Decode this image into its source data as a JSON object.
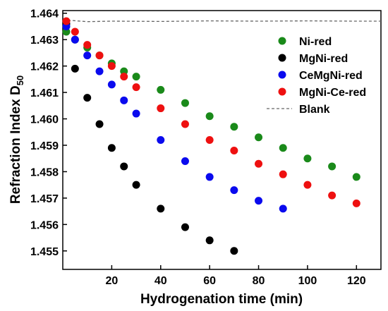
{
  "chart_data": {
    "type": "scatter",
    "xlabel": "Hydrogenation time (min)",
    "ylabel": "Refraction Index D",
    "ylabel_subscript": "50",
    "xlim": [
      0,
      130
    ],
    "ylim": [
      1.4543,
      1.4641
    ],
    "xticks": [
      20,
      40,
      60,
      80,
      100,
      120
    ],
    "xtick_labels": [
      "20",
      "40",
      "60",
      "80",
      "100",
      "120"
    ],
    "yticks": [
      1.455,
      1.456,
      1.457,
      1.458,
      1.459,
      1.46,
      1.461,
      1.462,
      1.463,
      1.464
    ],
    "ytick_labels": [
      "1.455",
      "1.456",
      "1.457",
      "1.458",
      "1.459",
      "1.460",
      "1.461",
      "1.462",
      "1.463",
      "1.464"
    ],
    "legend_position": "top-right",
    "series": [
      {
        "name": "Ni-red",
        "kind": "scatter",
        "color": "#1a8a1a",
        "x": [
          0,
          5,
          10,
          15,
          20,
          25,
          30,
          40,
          50,
          60,
          70,
          80,
          90,
          100,
          110,
          120
        ],
        "y": [
          1.4633,
          1.463,
          1.4627,
          1.4624,
          1.4621,
          1.4618,
          1.4616,
          1.4611,
          1.4606,
          1.4601,
          1.4597,
          1.4593,
          1.4589,
          1.4585,
          1.4582,
          1.4578
        ]
      },
      {
        "name": "MgNi-red",
        "kind": "scatter",
        "color": "#000000",
        "x": [
          0,
          5,
          10,
          15,
          20,
          25,
          30,
          40,
          50,
          60,
          70
        ],
        "y": [
          1.4636,
          1.4619,
          1.4608,
          1.4598,
          1.4589,
          1.4582,
          1.4575,
          1.4566,
          1.4559,
          1.4554,
          1.455
        ]
      },
      {
        "name": "CeMgNi-red",
        "kind": "scatter",
        "color": "#0a0aee",
        "x": [
          0,
          5,
          10,
          15,
          20,
          25,
          30,
          40,
          50,
          60,
          70,
          80,
          90
        ],
        "y": [
          1.4635,
          1.463,
          1.4624,
          1.4618,
          1.4613,
          1.4607,
          1.4602,
          1.4592,
          1.4584,
          1.4578,
          1.4573,
          1.4569,
          1.4566
        ]
      },
      {
        "name": "MgNi-Ce-red",
        "kind": "scatter",
        "color": "#ee1010",
        "x": [
          0,
          5,
          10,
          15,
          20,
          25,
          30,
          40,
          50,
          60,
          70,
          80,
          90,
          100,
          110,
          120
        ],
        "y": [
          1.4637,
          1.4633,
          1.4628,
          1.4624,
          1.462,
          1.4616,
          1.4612,
          1.4604,
          1.4598,
          1.4592,
          1.4588,
          1.4583,
          1.4579,
          1.4575,
          1.4571,
          1.4568
        ]
      },
      {
        "name": "Blank",
        "kind": "dashed-line",
        "color": "#666666",
        "x": [
          0,
          10,
          20,
          40,
          60,
          80,
          100,
          120,
          130
        ],
        "y": [
          1.46375,
          1.46368,
          1.4637,
          1.46369,
          1.46371,
          1.4637,
          1.46371,
          1.4637,
          1.4637
        ]
      }
    ]
  }
}
